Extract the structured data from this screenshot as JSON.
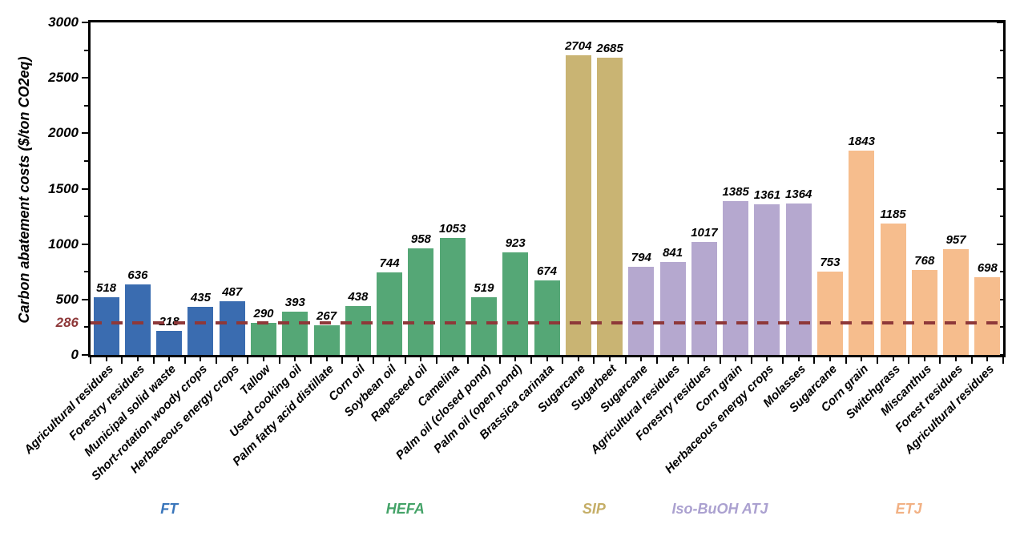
{
  "chart_data": {
    "type": "bar",
    "title": "",
    "xlabel": "",
    "ylabel": "Carbon abatement costs ($/ton CO2eq)",
    "ylim": [
      0,
      3000
    ],
    "yticks": [
      0,
      500,
      1000,
      1500,
      2000,
      2500,
      3000
    ],
    "ytick_interval_major": 500,
    "ytick_interval_minor": 250,
    "grid": false,
    "value_labels": true,
    "reference_line": {
      "value": 286,
      "label": "286",
      "color": "#8e3839",
      "style": "dashed"
    },
    "groups": [
      {
        "name": "FT",
        "color": "#3a6cb0",
        "label_color": "#3a76bb",
        "bars": [
          {
            "category": "Agricultural residues",
            "value": 518
          },
          {
            "category": "Forestry residues",
            "value": 636
          },
          {
            "category": "Municipal solid waste",
            "value": 218
          },
          {
            "category": "Short-rotation woody crops",
            "value": 435
          },
          {
            "category": "Herbaceous energy crops",
            "value": 487
          }
        ]
      },
      {
        "name": "HEFA",
        "color": "#55a776",
        "label_color": "#44a368",
        "bars": [
          {
            "category": "Tallow",
            "value": 290
          },
          {
            "category": "Used cooking oil",
            "value": 393
          },
          {
            "category": "Palm fatty acid distillate",
            "value": 267
          },
          {
            "category": "Corn oil",
            "value": 438
          },
          {
            "category": "Soybean oil",
            "value": 744
          },
          {
            "category": "Rapeseed oil",
            "value": 958
          },
          {
            "category": "Camelina",
            "value": 1053
          },
          {
            "category": "Palm oil (closed pond)",
            "value": 519
          },
          {
            "category": "Palm oil (open pond)",
            "value": 923
          },
          {
            "category": "Brassica carinata",
            "value": 674
          }
        ]
      },
      {
        "name": "SIP",
        "color": "#c9b473",
        "label_color": "#c5ae67",
        "bars": [
          {
            "category": "Sugarcane",
            "value": 2704
          },
          {
            "category": "Sugarbeet",
            "value": 2685
          }
        ]
      },
      {
        "name": "Iso-BuOH ATJ",
        "color": "#b5a8cf",
        "label_color": "#aba1d0",
        "bars": [
          {
            "category": "Sugarcane",
            "value": 794
          },
          {
            "category": "Agricultural residues",
            "value": 841
          },
          {
            "category": "Forestry residues",
            "value": 1017
          },
          {
            "category": "Corn grain",
            "value": 1385
          },
          {
            "category": "Herbaceous energy crops",
            "value": 1361
          },
          {
            "category": "Molasses",
            "value": 1364
          }
        ]
      },
      {
        "name": "ETJ",
        "color": "#f6bd8d",
        "label_color": "#f2b184",
        "bars": [
          {
            "category": "Sugarcane",
            "value": 753
          },
          {
            "category": "Corn grain",
            "value": 1843
          },
          {
            "category": "Switchgrass",
            "value": 1185
          },
          {
            "category": "Miscanthus",
            "value": 768
          },
          {
            "category": "Forest residues",
            "value": 957
          },
          {
            "category": "Agricultural residues",
            "value": 698
          }
        ]
      }
    ]
  }
}
